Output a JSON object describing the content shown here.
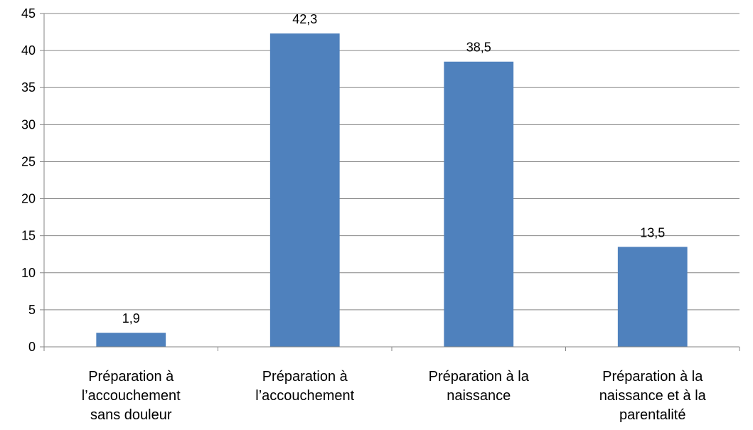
{
  "chart_data": {
    "type": "bar",
    "categories": [
      [
        "Préparation à",
        "l’accouchement",
        "sans douleur"
      ],
      [
        "Préparation à",
        "l’accouchement"
      ],
      [
        "Préparation à la",
        "naissance"
      ],
      [
        "Préparation à la",
        "naissance et à la",
        "parentalité"
      ]
    ],
    "values": [
      1.9,
      42.3,
      38.5,
      13.5
    ],
    "data_labels": [
      "1,9",
      "42,3",
      "38,5",
      "13,5"
    ],
    "ylim": [
      0,
      45
    ],
    "yticks": [
      0,
      5,
      10,
      15,
      20,
      25,
      30,
      35,
      40,
      45
    ],
    "grid": true,
    "legend": "none",
    "bar_color": "#4f81bd",
    "grid_color": "#868686"
  }
}
